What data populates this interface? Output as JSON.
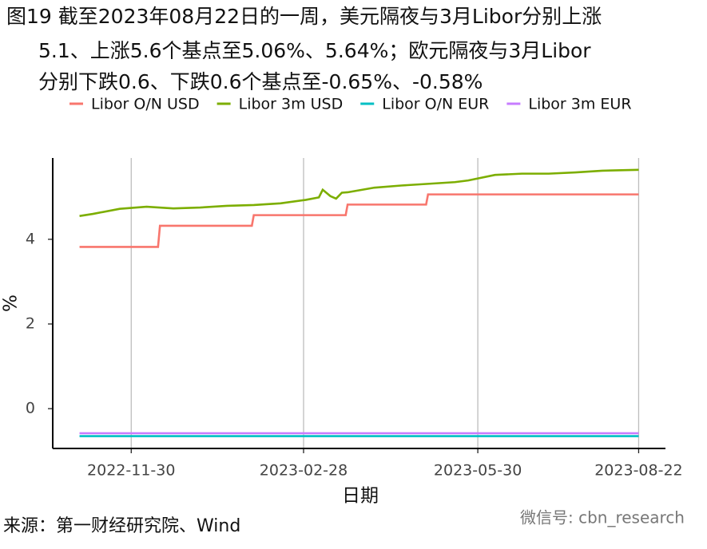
{
  "chart_data": {
    "type": "line",
    "title": [
      "图19  截至2023年08月22日的一周，美元隔夜与3月Libor分别上涨",
      "5.1、上涨5.6个基点至5.06%、5.64%；欧元隔夜与3月Libor",
      "分别下跌0.6、下跌0.6个基点至-0.65%、-0.58%"
    ],
    "x_label": "日期",
    "y_label": "%",
    "source": "来源：第一财经研究院、Wind",
    "watermark": "微信号: cbn_research",
    "xlim": [
      "2022-10-20",
      "2023-09-05"
    ],
    "xticks": [
      "2022-11-30",
      "2023-02-28",
      "2023-05-30",
      "2023-08-22"
    ],
    "ylim": [
      -0.94,
      5.92
    ],
    "yticks": [
      0,
      2,
      4
    ],
    "grid": "x",
    "legend": "top",
    "series": [
      {
        "name": "Libor O/N USD",
        "color": "#F8766D",
        "x": [
          "2022-11-03",
          "2022-12-14",
          "2022-12-15",
          "2023-02-01",
          "2023-02-02",
          "2023-03-22",
          "2023-03-23",
          "2023-05-03",
          "2023-05-04",
          "2023-08-22"
        ],
        "values": [
          3.82,
          3.82,
          4.32,
          4.32,
          4.57,
          4.57,
          4.82,
          4.82,
          5.06,
          5.06
        ]
      },
      {
        "name": "Libor 3m USD",
        "color": "#7CAE00",
        "x": [
          "2022-11-03",
          "2022-11-10",
          "2022-11-24",
          "2022-12-08",
          "2022-12-22",
          "2023-01-05",
          "2023-01-19",
          "2023-02-02",
          "2023-02-16",
          "2023-03-01",
          "2023-03-08",
          "2023-03-10",
          "2023-03-14",
          "2023-03-17",
          "2023-03-20",
          "2023-03-23",
          "2023-04-06",
          "2023-04-20",
          "2023-05-04",
          "2023-05-18",
          "2023-05-25",
          "2023-06-08",
          "2023-06-22",
          "2023-07-06",
          "2023-07-20",
          "2023-08-03",
          "2023-08-22"
        ],
        "values": [
          4.55,
          4.6,
          4.72,
          4.77,
          4.73,
          4.75,
          4.79,
          4.81,
          4.85,
          4.93,
          4.99,
          5.17,
          5.02,
          4.96,
          5.1,
          5.11,
          5.22,
          5.27,
          5.31,
          5.35,
          5.39,
          5.52,
          5.55,
          5.55,
          5.58,
          5.62,
          5.64
        ]
      },
      {
        "name": "Libor O/N EUR",
        "color": "#00BFC4",
        "x": [
          "2022-11-03",
          "2023-08-22"
        ],
        "values": [
          -0.65,
          -0.65
        ]
      },
      {
        "name": "Libor 3m EUR",
        "color": "#C77CFF",
        "x": [
          "2022-11-03",
          "2023-08-22"
        ],
        "values": [
          -0.58,
          -0.58
        ]
      }
    ]
  }
}
